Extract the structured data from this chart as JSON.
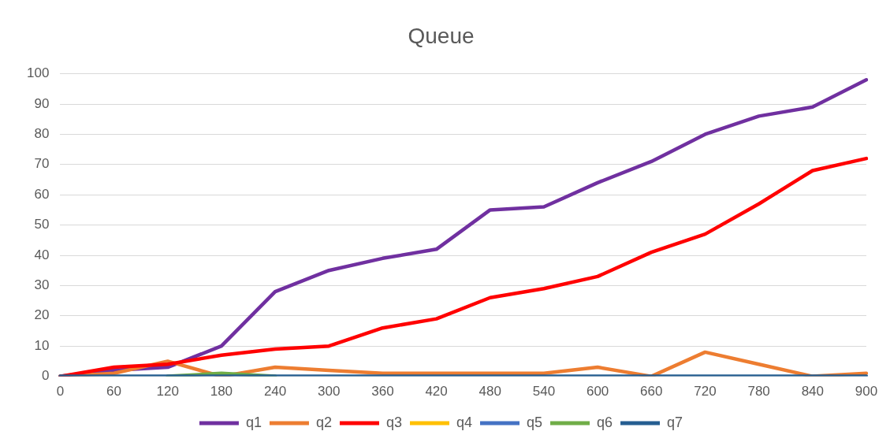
{
  "chart_data": {
    "type": "line",
    "title": "Queue",
    "categories": [
      "0",
      "60",
      "120",
      "180",
      "240",
      "300",
      "360",
      "420",
      "480",
      "540",
      "600",
      "660",
      "720",
      "780",
      "840",
      "900"
    ],
    "series": [
      {
        "name": "q1",
        "color": "#7030a0",
        "values": [
          0,
          2,
          3,
          10,
          28,
          35,
          39,
          42,
          55,
          56,
          64,
          71,
          80,
          86,
          89,
          98
        ]
      },
      {
        "name": "q2",
        "color": "#ed7d31",
        "values": [
          0,
          1,
          5,
          0,
          3,
          2,
          1,
          1,
          1,
          1,
          3,
          0,
          8,
          4,
          0,
          1
        ]
      },
      {
        "name": "q3",
        "color": "#ff0000",
        "values": [
          0,
          3,
          4,
          7,
          9,
          10,
          16,
          19,
          26,
          29,
          33,
          41,
          47,
          57,
          68,
          72
        ]
      },
      {
        "name": "q4",
        "color": "#ffc000",
        "values": [
          null,
          null,
          null,
          null,
          null,
          null,
          null,
          null,
          null,
          null,
          null,
          null,
          null,
          null,
          null,
          null
        ]
      },
      {
        "name": "q5",
        "color": "#4472c4",
        "values": [
          null,
          null,
          null,
          null,
          null,
          null,
          null,
          null,
          null,
          null,
          null,
          null,
          null,
          null,
          null,
          null
        ]
      },
      {
        "name": "q6",
        "color": "#70ad47",
        "values": [
          null,
          null,
          0,
          1,
          0,
          null,
          null,
          null,
          null,
          null,
          null,
          null,
          null,
          null,
          null,
          null
        ]
      },
      {
        "name": "q7",
        "color": "#255e91",
        "values": [
          0,
          0,
          0,
          0,
          0,
          0,
          0,
          0,
          0,
          0,
          0,
          0,
          0,
          0,
          0,
          0
        ]
      }
    ],
    "ylim": [
      0,
      100
    ],
    "yticks": [
      0,
      10,
      20,
      30,
      40,
      50,
      60,
      70,
      80,
      90,
      100
    ],
    "grid": "y",
    "legend": "bottom",
    "marker": "none",
    "line_style": "solid"
  }
}
